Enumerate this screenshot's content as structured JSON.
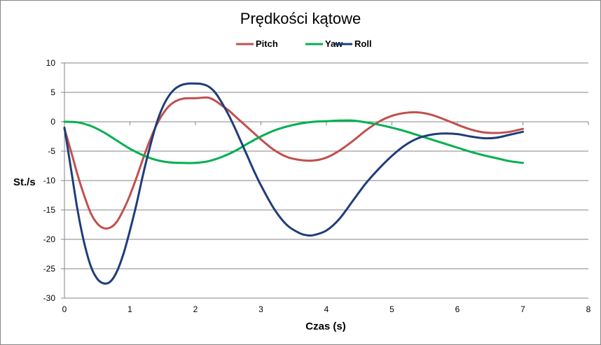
{
  "chart_data": {
    "type": "line",
    "title": "Prędkości kątowe",
    "xlabel": "Czas (s)",
    "ylabel": "St./s",
    "xlim": [
      0,
      8
    ],
    "ylim": [
      -30,
      10
    ],
    "x_ticks": [
      "0",
      "1",
      "2",
      "3",
      "4",
      "5",
      "6",
      "7",
      "8"
    ],
    "y_ticks": [
      "10",
      "5",
      "0",
      "-5",
      "-10",
      "-15",
      "-20",
      "-25",
      "-30"
    ],
    "grid": "horizontal",
    "legend": "top",
    "series": [
      {
        "name": "Pitch",
        "color": "#c0504d",
        "points": [
          [
            0,
            -1.2
          ],
          [
            0.1,
            -5
          ],
          [
            0.2,
            -9
          ],
          [
            0.3,
            -12.5
          ],
          [
            0.4,
            -15.5
          ],
          [
            0.5,
            -17.3
          ],
          [
            0.6,
            -18.1
          ],
          [
            0.7,
            -18.0
          ],
          [
            0.8,
            -17.0
          ],
          [
            0.9,
            -15.0
          ],
          [
            1.0,
            -12.5
          ],
          [
            1.1,
            -9.5
          ],
          [
            1.2,
            -6.3
          ],
          [
            1.3,
            -3.3
          ],
          [
            1.4,
            -0.7
          ],
          [
            1.5,
            1.3
          ],
          [
            1.6,
            2.7
          ],
          [
            1.7,
            3.5
          ],
          [
            1.8,
            3.9
          ],
          [
            1.9,
            4.0
          ],
          [
            2.0,
            4.0
          ],
          [
            2.1,
            4.1
          ],
          [
            2.2,
            4.1
          ],
          [
            2.3,
            3.6
          ],
          [
            2.4,
            2.8
          ],
          [
            2.5,
            2.0
          ],
          [
            2.6,
            1.0
          ],
          [
            2.7,
            0.0
          ],
          [
            2.8,
            -1.0
          ],
          [
            2.9,
            -2.0
          ],
          [
            3.0,
            -3.0
          ],
          [
            3.2,
            -4.8
          ],
          [
            3.4,
            -6.0
          ],
          [
            3.6,
            -6.5
          ],
          [
            3.8,
            -6.6
          ],
          [
            4.0,
            -6.1
          ],
          [
            4.2,
            -4.9
          ],
          [
            4.4,
            -3.3
          ],
          [
            4.6,
            -1.5
          ],
          [
            4.8,
            0.0
          ],
          [
            5.0,
            1.0
          ],
          [
            5.2,
            1.5
          ],
          [
            5.4,
            1.6
          ],
          [
            5.6,
            1.2
          ],
          [
            5.8,
            0.4
          ],
          [
            6.0,
            -0.5
          ],
          [
            6.2,
            -1.3
          ],
          [
            6.4,
            -1.8
          ],
          [
            6.6,
            -1.9
          ],
          [
            6.8,
            -1.7
          ],
          [
            7.0,
            -1.2
          ]
        ]
      },
      {
        "name": "Yaw",
        "color": "#00b050",
        "points": [
          [
            0,
            0
          ],
          [
            0.2,
            -0.1
          ],
          [
            0.4,
            -0.7
          ],
          [
            0.6,
            -1.8
          ],
          [
            0.8,
            -3.2
          ],
          [
            1.0,
            -4.6
          ],
          [
            1.2,
            -5.7
          ],
          [
            1.4,
            -6.5
          ],
          [
            1.6,
            -6.9
          ],
          [
            1.8,
            -7.0
          ],
          [
            2.0,
            -7.0
          ],
          [
            2.2,
            -6.7
          ],
          [
            2.4,
            -6.0
          ],
          [
            2.6,
            -5.0
          ],
          [
            2.8,
            -3.7
          ],
          [
            3.0,
            -2.5
          ],
          [
            3.2,
            -1.5
          ],
          [
            3.4,
            -0.8
          ],
          [
            3.6,
            -0.3
          ],
          [
            3.8,
            0.0
          ],
          [
            4.0,
            0.1
          ],
          [
            4.2,
            0.2
          ],
          [
            4.4,
            0.2
          ],
          [
            4.6,
            -0.1
          ],
          [
            4.8,
            -0.5
          ],
          [
            5.0,
            -1.0
          ],
          [
            5.2,
            -1.6
          ],
          [
            5.4,
            -2.3
          ],
          [
            5.6,
            -3.0
          ],
          [
            5.8,
            -3.7
          ],
          [
            6.0,
            -4.4
          ],
          [
            6.2,
            -5.1
          ],
          [
            6.4,
            -5.7
          ],
          [
            6.6,
            -6.2
          ],
          [
            6.8,
            -6.7
          ],
          [
            7.0,
            -7.0
          ]
        ]
      },
      {
        "name": "Roll",
        "color": "#1f3d7a",
        "points": [
          [
            0,
            -1.0
          ],
          [
            0.1,
            -8
          ],
          [
            0.2,
            -15
          ],
          [
            0.3,
            -20.5
          ],
          [
            0.4,
            -24.5
          ],
          [
            0.5,
            -26.7
          ],
          [
            0.6,
            -27.5
          ],
          [
            0.7,
            -27.2
          ],
          [
            0.8,
            -25.5
          ],
          [
            0.9,
            -22.5
          ],
          [
            1.0,
            -18.5
          ],
          [
            1.1,
            -14.0
          ],
          [
            1.2,
            -9.0
          ],
          [
            1.3,
            -4.5
          ],
          [
            1.4,
            -0.5
          ],
          [
            1.5,
            2.5
          ],
          [
            1.6,
            4.5
          ],
          [
            1.7,
            5.7
          ],
          [
            1.8,
            6.3
          ],
          [
            1.9,
            6.5
          ],
          [
            2.0,
            6.5
          ],
          [
            2.1,
            6.4
          ],
          [
            2.2,
            6.0
          ],
          [
            2.3,
            5.0
          ],
          [
            2.4,
            3.3
          ],
          [
            2.5,
            1.3
          ],
          [
            2.6,
            -1.0
          ],
          [
            2.7,
            -3.5
          ],
          [
            2.8,
            -6.0
          ],
          [
            2.9,
            -8.5
          ],
          [
            3.0,
            -10.8
          ],
          [
            3.2,
            -14.8
          ],
          [
            3.4,
            -17.6
          ],
          [
            3.6,
            -19.0
          ],
          [
            3.7,
            -19.3
          ],
          [
            3.8,
            -19.3
          ],
          [
            4.0,
            -18.5
          ],
          [
            4.2,
            -16.5
          ],
          [
            4.4,
            -13.5
          ],
          [
            4.6,
            -10.5
          ],
          [
            4.8,
            -8.0
          ],
          [
            5.0,
            -5.8
          ],
          [
            5.2,
            -4.0
          ],
          [
            5.4,
            -2.8
          ],
          [
            5.6,
            -2.2
          ],
          [
            5.8,
            -2.0
          ],
          [
            6.0,
            -2.1
          ],
          [
            6.2,
            -2.5
          ],
          [
            6.4,
            -2.8
          ],
          [
            6.6,
            -2.7
          ],
          [
            6.8,
            -2.2
          ],
          [
            7.0,
            -1.7
          ]
        ]
      }
    ]
  }
}
